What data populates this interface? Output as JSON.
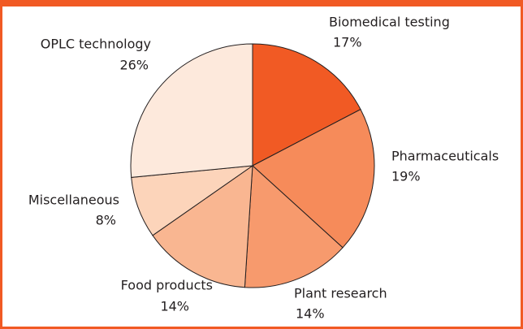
{
  "chart_data": {
    "type": "pie",
    "categories": [
      "Biomedical testing",
      "Pharmaceuticals",
      "Plant research",
      "Food products",
      "Miscellaneous",
      "OPLC technology"
    ],
    "values": [
      17,
      19,
      14,
      14,
      8,
      26
    ],
    "value_labels": [
      "17%",
      "19%",
      "14%",
      "14%",
      "8%",
      "26%"
    ],
    "colors": [
      "#f15a24",
      "#f68b5a",
      "#f79a6d",
      "#f9b691",
      "#fcd4ba",
      "#fde9dc"
    ]
  }
}
